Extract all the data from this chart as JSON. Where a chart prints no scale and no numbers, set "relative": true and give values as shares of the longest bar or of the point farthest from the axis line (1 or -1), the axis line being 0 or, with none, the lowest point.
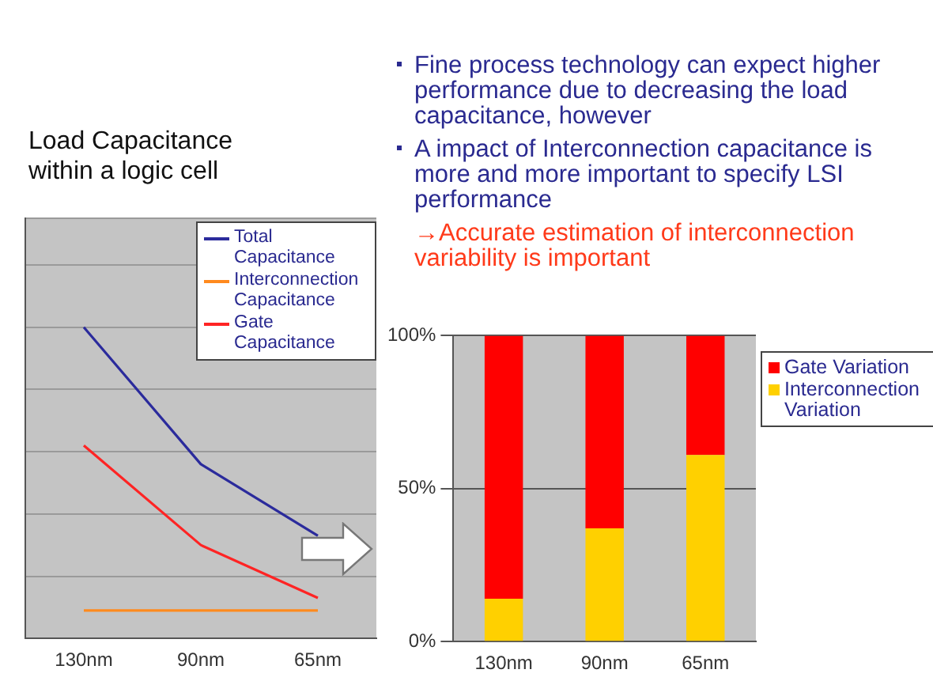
{
  "chart_data": [
    {
      "type": "line",
      "title": "Load Capacitance within a logic cell",
      "categories": [
        "130nm",
        "90nm",
        "65nm"
      ],
      "relative": true,
      "grid": "y",
      "legend": "top right",
      "marker": "none",
      "line_style": "solid",
      "series": [
        {
          "name": "Total Capacitance",
          "color": "#2b2b9c",
          "values": [
            1,
            0.56,
            0.33
          ]
        },
        {
          "name": "Interconnection Capacitance",
          "color": "#ff8a1e",
          "values": [
            0.09,
            0.09,
            0.09
          ]
        },
        {
          "name": "Gate Capacitance",
          "color": "#ff2424",
          "values": [
            0.62,
            0.3,
            0.13
          ]
        }
      ]
    },
    {
      "type": "other",
      "annotations": [
        "Fine process technology can expect higher performance due to decreasing the load capacitance, however",
        "A impact of Interconnection capacitance is more and more important to specify LSI performance",
        "→Accurate estimation of interconnection variability is important"
      ]
    },
    {
      "type": "bar",
      "categories": [
        "130nm",
        "90nm",
        "65nm"
      ],
      "stacked": true,
      "ylim": [
        0,
        100
      ],
      "yticks": [
        {
          "value": 0,
          "label": "0%"
        },
        {
          "value": 50,
          "label": "50%"
        },
        {
          "value": 100,
          "label": "100%"
        }
      ],
      "grid": "y",
      "legend": "right",
      "series": [
        {
          "name": "Interconnection Variation",
          "color": "#ffd000",
          "values": [
            14,
            37,
            61
          ]
        },
        {
          "name": "Gate Variation",
          "color": "#ff0000",
          "values": [
            86,
            63,
            39
          ]
        }
      ]
    }
  ]
}
